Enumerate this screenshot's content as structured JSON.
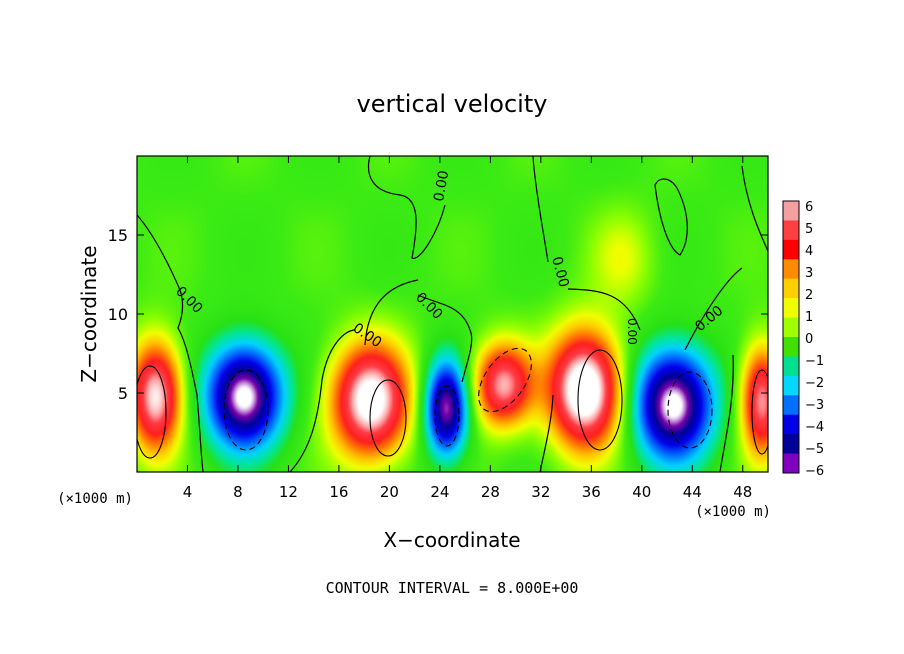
{
  "chart_data": {
    "type": "heatmap",
    "title": "vertical velocity",
    "xlabel": "X−coordinate",
    "ylabel": "Z−coordinate",
    "x_unit_left": "(×1000 m)",
    "x_unit_right": "(×1000 m)",
    "xlim": [
      0,
      50
    ],
    "ylim": [
      0,
      20
    ],
    "xticks": [
      4,
      8,
      12,
      16,
      20,
      24,
      28,
      32,
      36,
      40,
      44,
      48
    ],
    "yticks": [
      5,
      10,
      15
    ],
    "colorbar": {
      "range": [
        -6,
        6
      ],
      "tick_labels": [
        "6",
        "5",
        "4",
        "3",
        "2",
        "1",
        "0",
        "−1",
        "−2",
        "−3",
        "−4",
        "−5",
        "−6"
      ],
      "colors": [
        "#f4a0a0",
        "#ff4040",
        "#ff0000",
        "#ff8c00",
        "#ffd000",
        "#f0ff00",
        "#a0ff00",
        "#40e000",
        "#00e090",
        "#00d8ff",
        "#0070ff",
        "#0000e8",
        "#000098",
        "#8000c0"
      ]
    },
    "contour_labels": [
      "0.00",
      "0.00",
      "0.00",
      "0.00",
      "0.00",
      "0.00",
      "0.00"
    ],
    "footer": "CONTOUR INTERVAL = 8.000E+00",
    "features": [
      {
        "kind": "up",
        "x": 1.5,
        "z": 4.8,
        "sx": 2.0,
        "sz": 3.4,
        "amp": 9
      },
      {
        "kind": "down",
        "x": 8.5,
        "z": 4.8,
        "sx": 3.0,
        "sz": 3.3,
        "amp": -10
      },
      {
        "kind": "up",
        "x": 18.5,
        "z": 4.5,
        "sx": 3.0,
        "sz": 3.5,
        "amp": 10
      },
      {
        "kind": "down",
        "x": 24.5,
        "z": 4.0,
        "sx": 1.7,
        "sz": 3.0,
        "amp": -9
      },
      {
        "kind": "up",
        "x": 29.0,
        "z": 5.5,
        "sx": 2.3,
        "sz": 2.6,
        "amp": 8
      },
      {
        "kind": "up",
        "x": 35.5,
        "z": 5.2,
        "sx": 2.8,
        "sz": 3.6,
        "amp": 11
      },
      {
        "kind": "down",
        "x": 42.5,
        "z": 4.3,
        "sx": 3.1,
        "sz": 3.5,
        "amp": -10
      },
      {
        "kind": "up",
        "x": 49.5,
        "z": 4.5,
        "sx": 1.6,
        "sz": 3.4,
        "amp": 8
      },
      {
        "kind": "up",
        "x": 38.5,
        "z": 13.5,
        "sx": 2.5,
        "sz": 3.0,
        "amp": 1.8
      }
    ]
  }
}
